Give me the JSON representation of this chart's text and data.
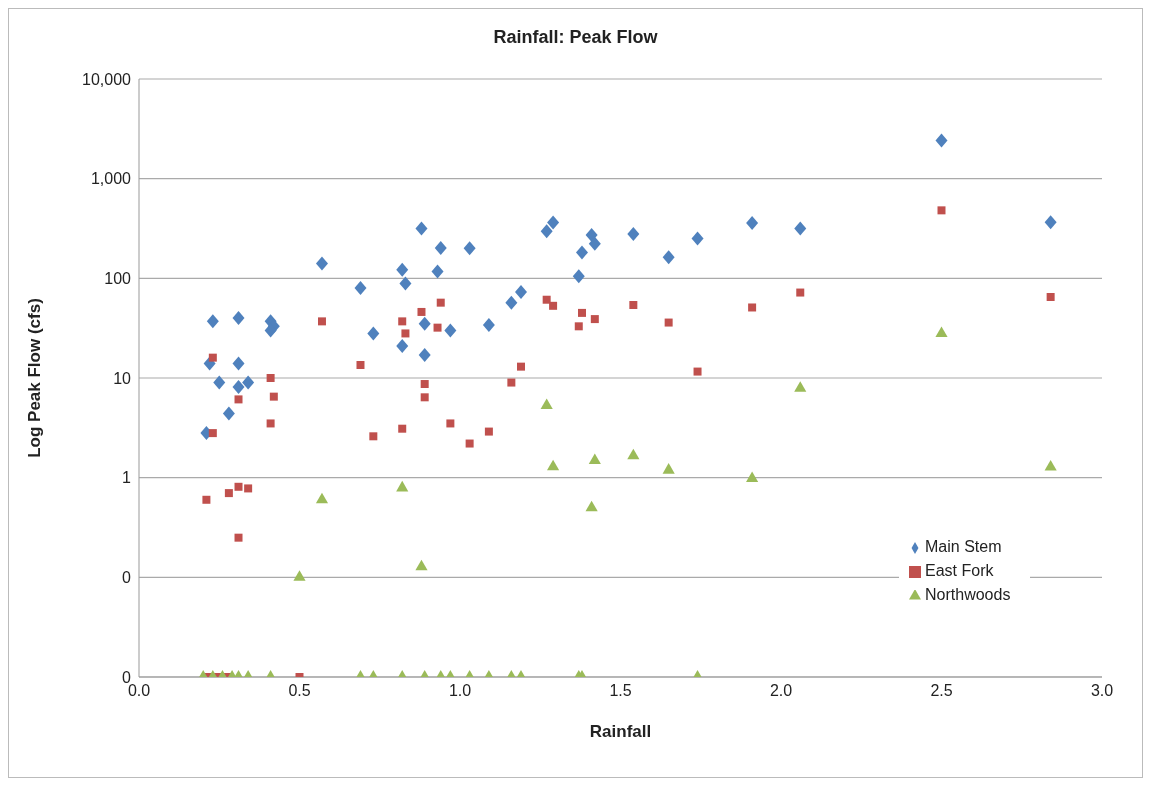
{
  "chart_data": {
    "type": "scatter",
    "title": "Rainfall: Peak Flow",
    "xlabel": "Rainfall",
    "ylabel": "Log Peak Flow (cfs)",
    "xlim": [
      0,
      3
    ],
    "xticks": [
      {
        "value": 0,
        "label": "0.0"
      },
      {
        "value": 0.5,
        "label": "0.5"
      },
      {
        "value": 1,
        "label": "1.0"
      },
      {
        "value": 1.5,
        "label": "1.5"
      },
      {
        "value": 2,
        "label": "2.0"
      },
      {
        "value": 2.5,
        "label": "2.5"
      },
      {
        "value": 3,
        "label": "3.0"
      }
    ],
    "ylim": [
      0.01,
      10000
    ],
    "yticks": [
      {
        "value": 0.01,
        "label": "0"
      },
      {
        "value": 0.1,
        "label": "0"
      },
      1,
      10,
      100,
      {
        "value": 1000,
        "label": "1,000"
      },
      {
        "value": 10000,
        "label": "10,000"
      }
    ],
    "log": "y",
    "grid": "y",
    "legend": "bottom right",
    "series": [
      {
        "name": "Main Stem",
        "color": "#4f81bd",
        "marker": "diamond",
        "x": [
          0.23,
          0.31,
          0.41,
          0.42,
          0.41,
          0.22,
          0.31,
          0.25,
          0.31,
          0.34,
          0.28,
          0.21,
          0.57,
          0.69,
          0.73,
          0.82,
          0.82,
          0.83,
          0.88,
          0.89,
          0.89,
          0.94,
          0.93,
          0.97,
          1.03,
          1.09,
          1.16,
          1.19,
          1.27,
          1.29,
          1.37,
          1.38,
          1.41,
          1.42,
          1.54,
          1.65,
          1.74,
          1.91,
          2.06,
          2.5,
          2.84
        ],
        "values": [
          37,
          40,
          37,
          33,
          30,
          14,
          14,
          9,
          8.1,
          9,
          4.4,
          2.8,
          141,
          80,
          28,
          21,
          122,
          89,
          316,
          35,
          17,
          202,
          117,
          30,
          200,
          34,
          57,
          73,
          296,
          364,
          105,
          182,
          272,
          222,
          279,
          163,
          251,
          359,
          316,
          2415,
          366
        ]
      },
      {
        "name": "East Fork",
        "color": "#c0504d",
        "marker": "square",
        "x": [
          0.23,
          0.23,
          0.31,
          0.41,
          0.42,
          0.41,
          0.57,
          0.69,
          0.73,
          0.82,
          0.82,
          0.83,
          0.88,
          0.94,
          0.93,
          0.89,
          0.89,
          0.97,
          1.03,
          0.21,
          0.28,
          0.31,
          0.34,
          0.31,
          0.215,
          0.245,
          0.275,
          0.5,
          1.09,
          1.16,
          1.19,
          1.27,
          1.29,
          1.38,
          1.37,
          1.42,
          1.54,
          1.65,
          1.74,
          1.91,
          2.06,
          2.5,
          2.84
        ],
        "values": [
          16,
          2.8,
          6.1,
          10,
          6.5,
          3.5,
          37,
          13.5,
          2.6,
          3.1,
          37,
          28,
          46,
          57,
          32,
          8.7,
          6.4,
          3.5,
          2.2,
          0.6,
          0.7,
          0.81,
          0.78,
          0.25,
          0.01,
          0.01,
          0.01,
          0.01,
          2.9,
          9,
          13,
          61,
          53,
          45,
          33,
          39,
          54,
          36,
          11.6,
          51,
          72,
          481,
          65
        ]
      },
      {
        "name": "Northwoods",
        "color": "#9bbb59",
        "marker": "triangle",
        "x": [
          0.57,
          0.82,
          0.88,
          0.5,
          0.2,
          0.23,
          0.26,
          0.29,
          0.31,
          0.34,
          0.41,
          0.69,
          0.73,
          0.82,
          0.89,
          0.94,
          0.97,
          1.03,
          1.09,
          1.16,
          1.19,
          1.37,
          1.38,
          1.74,
          1.27,
          1.29,
          1.42,
          1.41,
          1.54,
          1.65,
          1.91,
          2.06,
          2.5,
          2.84
        ],
        "values": [
          0.6,
          0.79,
          0.128,
          0.1,
          0.01,
          0.01,
          0.01,
          0.01,
          0.01,
          0.01,
          0.01,
          0.01,
          0.01,
          0.01,
          0.01,
          0.01,
          0.01,
          0.01,
          0.01,
          0.01,
          0.01,
          0.01,
          0.01,
          0.01,
          5.3,
          1.29,
          1.49,
          0.5,
          1.66,
          1.19,
          0.98,
          7.9,
          28,
          1.28
        ]
      }
    ]
  }
}
